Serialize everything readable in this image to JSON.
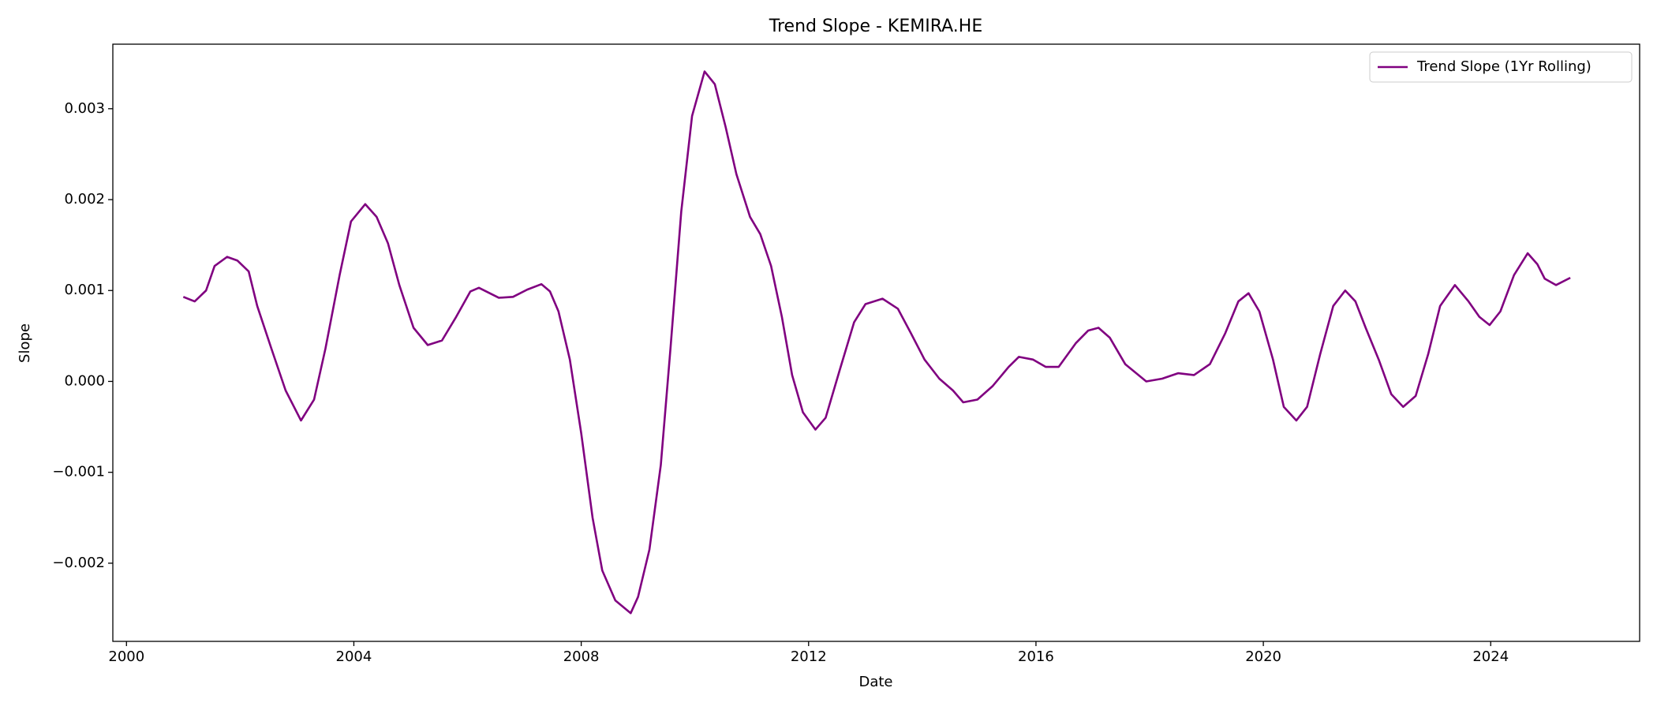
{
  "chart_data": {
    "type": "line",
    "title": "Trend Slope - KEMIRA.HE",
    "x_label": "Date",
    "y_label": "Slope",
    "x": [
      2001.0,
      2001.2,
      2001.4,
      2001.55,
      2001.77,
      2001.95,
      2002.15,
      2002.3,
      2002.55,
      2002.8,
      2003.07,
      2003.3,
      2003.5,
      2003.75,
      2003.95,
      2004.2,
      2004.4,
      2004.6,
      2004.8,
      2005.05,
      2005.3,
      2005.55,
      2005.8,
      2006.05,
      2006.2,
      2006.55,
      2006.8,
      2007.05,
      2007.3,
      2007.45,
      2007.6,
      2007.8,
      2008.0,
      2008.2,
      2008.37,
      2008.6,
      2008.87,
      2009.0,
      2009.2,
      2009.4,
      2009.57,
      2009.76,
      2009.95,
      2010.17,
      2010.35,
      2010.54,
      2010.73,
      2010.97,
      2011.15,
      2011.34,
      2011.53,
      2011.71,
      2011.9,
      2012.12,
      2012.3,
      2012.55,
      2012.8,
      2013.0,
      2013.3,
      2013.57,
      2013.8,
      2014.04,
      2014.3,
      2014.54,
      2014.72,
      2014.97,
      2015.24,
      2015.52,
      2015.7,
      2015.95,
      2016.17,
      2016.4,
      2016.7,
      2016.92,
      2017.1,
      2017.3,
      2017.57,
      2017.94,
      2018.22,
      2018.5,
      2018.78,
      2019.06,
      2019.33,
      2019.56,
      2019.74,
      2019.93,
      2020.17,
      2020.36,
      2020.58,
      2020.77,
      2021.0,
      2021.23,
      2021.44,
      2021.62,
      2021.8,
      2022.03,
      2022.25,
      2022.46,
      2022.68,
      2022.9,
      2023.11,
      2023.37,
      2023.61,
      2023.8,
      2023.98,
      2024.17,
      2024.41,
      2024.65,
      2024.82,
      2024.95,
      2025.15,
      2025.4
    ],
    "series": [
      {
        "name": "Trend Slope (1Yr Rolling)",
        "color": "#800080",
        "values": [
          0.00093,
          0.00088,
          0.001,
          0.00127,
          0.00137,
          0.00133,
          0.00121,
          0.00083,
          0.00036,
          -0.0001,
          -0.00043,
          -0.0002,
          0.00036,
          0.00117,
          0.00176,
          0.00195,
          0.00181,
          0.00152,
          0.00106,
          0.00059,
          0.0004,
          0.00045,
          0.00071,
          0.00099,
          0.00103,
          0.00092,
          0.00093,
          0.00101,
          0.00107,
          0.00099,
          0.00077,
          0.00024,
          -0.00057,
          -0.0015,
          -0.00208,
          -0.00241,
          -0.00255,
          -0.00237,
          -0.00185,
          -0.00092,
          0.00036,
          0.00187,
          0.00292,
          0.00341,
          0.00327,
          0.0028,
          0.00228,
          0.00181,
          0.00162,
          0.00127,
          0.00071,
          7e-05,
          -0.00034,
          -0.00053,
          -0.0004,
          0.00013,
          0.00065,
          0.00085,
          0.00091,
          0.0008,
          0.00053,
          0.00024,
          3e-05,
          -0.0001,
          -0.00023,
          -0.0002,
          -5e-05,
          0.00016,
          0.00027,
          0.00024,
          0.00016,
          0.00016,
          0.00042,
          0.00056,
          0.00059,
          0.00048,
          0.00019,
          0.0,
          3e-05,
          9e-05,
          7e-05,
          0.00019,
          0.00053,
          0.00088,
          0.00097,
          0.00077,
          0.00024,
          -0.00028,
          -0.00043,
          -0.00028,
          0.0003,
          0.00083,
          0.001,
          0.00088,
          0.00059,
          0.00024,
          -0.00014,
          -0.00028,
          -0.00016,
          0.0003,
          0.00083,
          0.00106,
          0.00088,
          0.00071,
          0.00062,
          0.00077,
          0.00117,
          0.00141,
          0.00129,
          0.00113,
          0.00106,
          0.00114
        ]
      }
    ],
    "xlim": [
      1999.76,
      2026.62
    ],
    "ylim": [
      -0.00286,
      0.00371
    ],
    "xticks": [
      2000,
      2004,
      2008,
      2012,
      2016,
      2020,
      2024
    ],
    "yticks": [
      {
        "value": -0.002,
        "label": "−0.002"
      },
      {
        "value": -0.001,
        "label": "−0.001"
      },
      {
        "value": 0,
        "label": "0.000"
      },
      {
        "value": 0.001,
        "label": "0.001"
      },
      {
        "value": 0.002,
        "label": "0.002"
      },
      {
        "value": 0.003,
        "label": "0.003"
      }
    ],
    "legend": "upper right",
    "grid": false
  }
}
